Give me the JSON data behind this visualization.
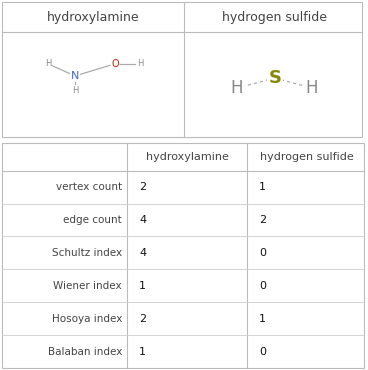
{
  "title_row": [
    "hydroxylamine",
    "hydrogen sulfide"
  ],
  "row_labels": [
    "vertex count",
    "edge count",
    "Schultz index",
    "Wiener index",
    "Hosoya index",
    "Balaban index"
  ],
  "col1_values": [
    "2",
    "4",
    "4",
    "1",
    "2",
    "1"
  ],
  "col2_values": [
    "1",
    "2",
    "0",
    "0",
    "1",
    "0"
  ],
  "border_color": "#bbbbbb",
  "line_color": "#cccccc",
  "text_color": "#444444",
  "value_color": "#111111",
  "N_color": "#4466cc",
  "O_color": "#cc2200",
  "H_color": "#888888",
  "S_color": "#888800",
  "bond_color": "#aaaaaa"
}
